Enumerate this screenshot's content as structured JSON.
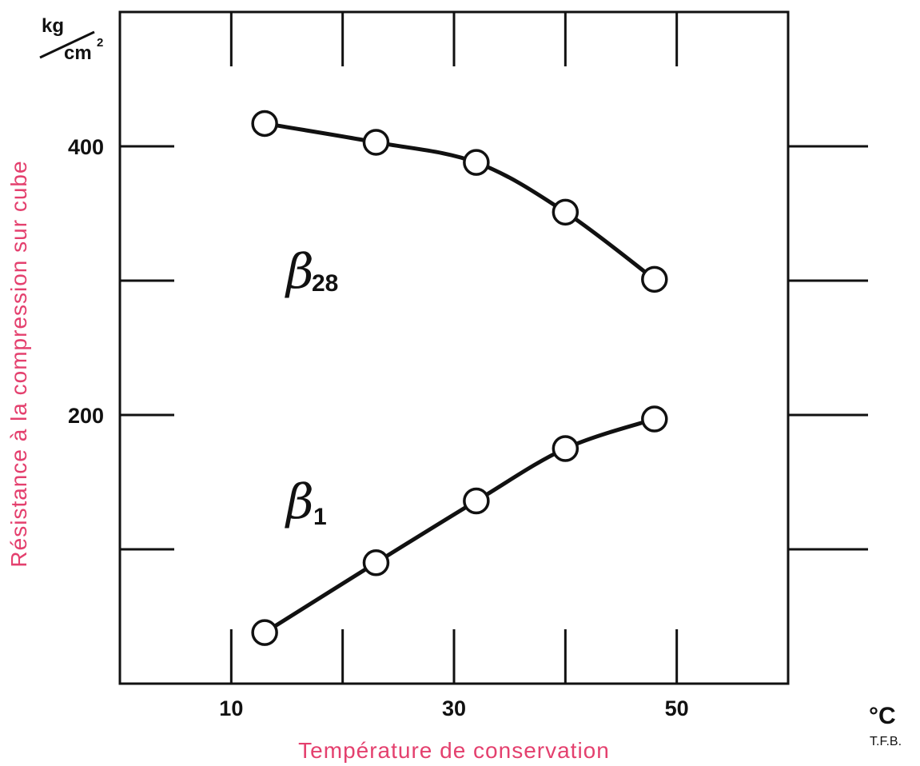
{
  "chart_data": {
    "type": "line",
    "xlabel": "Température de conservation",
    "ylabel": "Résistance à la compression sur cube",
    "x_unit": "°C",
    "y_unit_top": "kg",
    "y_unit_bottom": "cm",
    "y_unit_exp": "2",
    "credit": "T.F.B.",
    "xlim": [
      0,
      60
    ],
    "ylim": [
      0,
      500
    ],
    "x_ticks": [
      10,
      20,
      30,
      40,
      50
    ],
    "x_tick_labels": [
      "10",
      "",
      "30",
      "",
      "50"
    ],
    "y_ticks": [
      100,
      200,
      300,
      400
    ],
    "y_tick_labels": [
      "",
      "200",
      "",
      "400"
    ],
    "grid": false,
    "series": [
      {
        "name": "β",
        "subscript": "28",
        "x": [
          13,
          23,
          32,
          40,
          48
        ],
        "y": [
          417,
          403,
          388,
          351,
          301
        ]
      },
      {
        "name": "β",
        "subscript": "1",
        "x": [
          13,
          23,
          32,
          40,
          48
        ],
        "y": [
          38,
          90,
          136,
          175,
          197
        ]
      }
    ]
  }
}
